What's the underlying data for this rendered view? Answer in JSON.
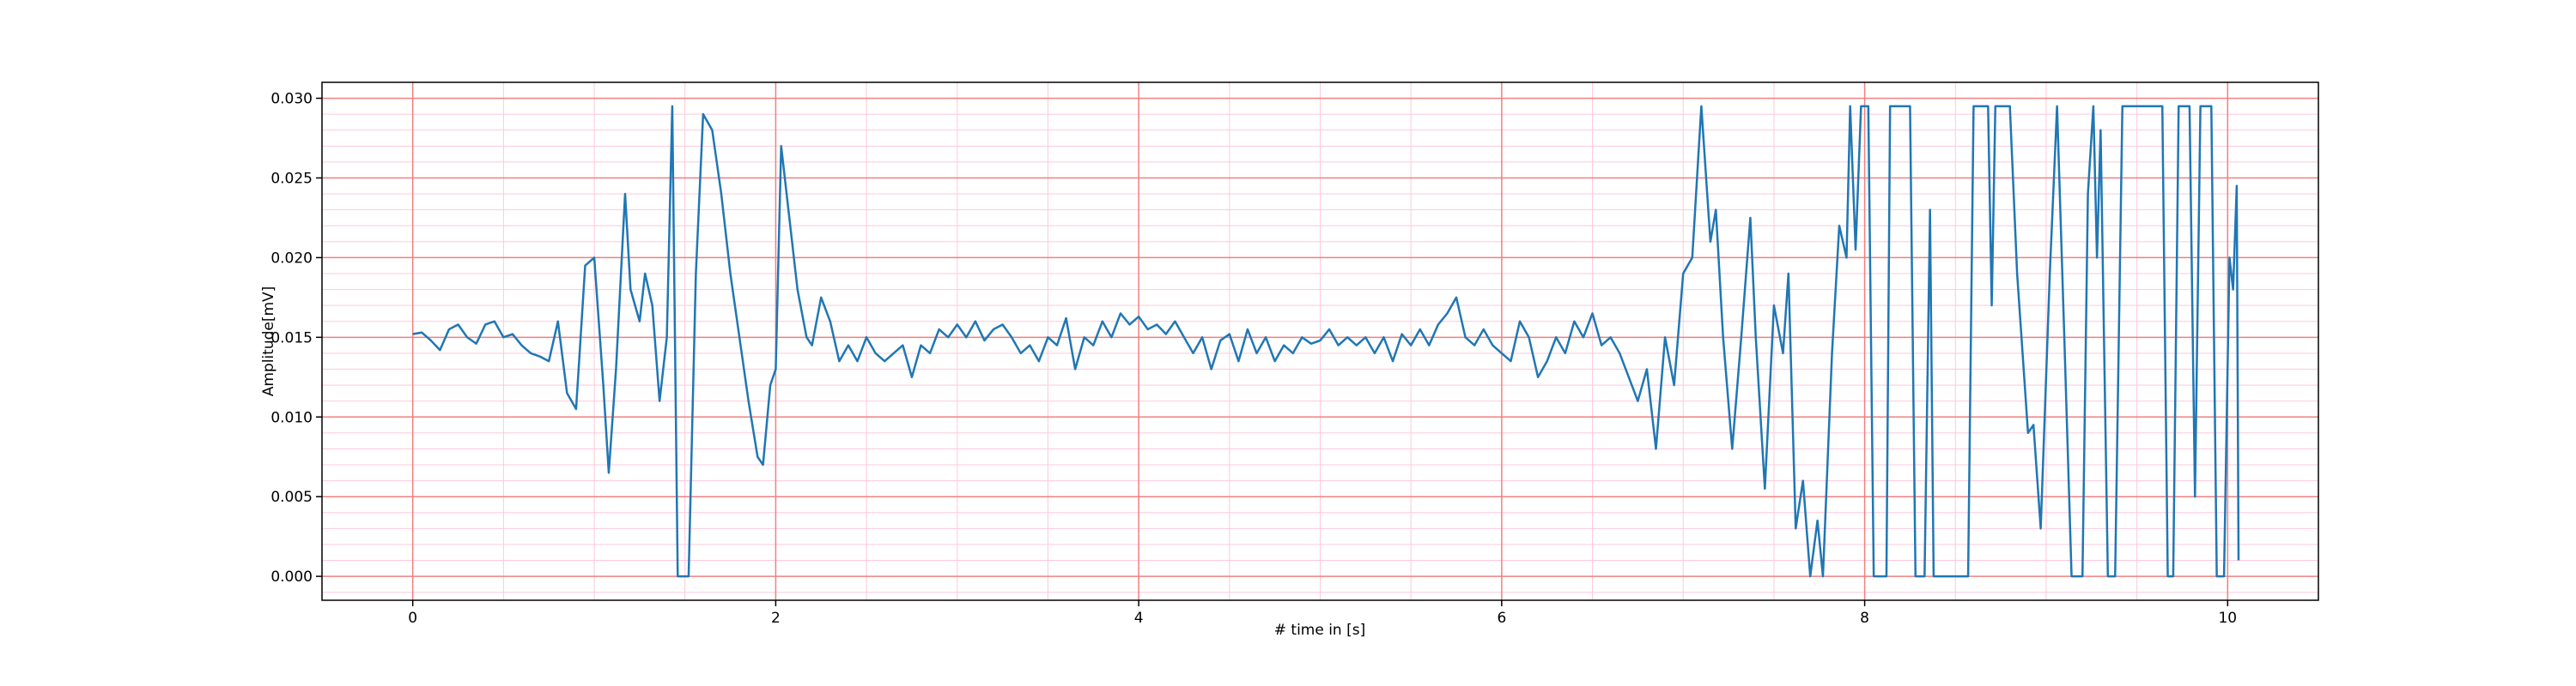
{
  "chart_data": {
    "type": "line",
    "xlabel": "# time in [s]",
    "ylabel": "Amplitude[mV]",
    "color": "#1f77b4",
    "grid": true,
    "xlim": [
      -0.5,
      10.5
    ],
    "ylim": [
      -0.0015,
      0.031
    ],
    "xticks": [
      0,
      2,
      4,
      6,
      8,
      10
    ],
    "yticks": [
      {
        "value": 0,
        "label": "0.000"
      },
      {
        "value": 0.005,
        "label": "0.005"
      },
      {
        "value": 0.01,
        "label": "0.010"
      },
      {
        "value": 0.015,
        "label": "0.015"
      },
      {
        "value": 0.02,
        "label": "0.020"
      },
      {
        "value": 0.025,
        "label": "0.025"
      },
      {
        "value": 0.03,
        "label": "0.030"
      }
    ],
    "xminorticks": [
      -0.5,
      0.5,
      1,
      1.5,
      2.5,
      3,
      3.5,
      4.5,
      5,
      5.5,
      6.5,
      7,
      7.5,
      8.5,
      9,
      9.5,
      10.5
    ],
    "yminorticks": [
      -0.001,
      0.001,
      0.002,
      0.003,
      0.004,
      0.006,
      0.007,
      0.008,
      0.009,
      0.011,
      0.012,
      0.013,
      0.014,
      0.016,
      0.017,
      0.018,
      0.019,
      0.021,
      0.022,
      0.023,
      0.024,
      0.026,
      0.027,
      0.028,
      0.029
    ],
    "x": [
      0,
      0.05,
      0.1,
      0.15,
      0.2,
      0.25,
      0.3,
      0.35,
      0.4,
      0.45,
      0.5,
      0.55,
      0.6,
      0.65,
      0.7,
      0.75,
      0.8,
      0.85,
      0.9,
      0.95,
      1.0,
      1.05,
      1.08,
      1.12,
      1.17,
      1.2,
      1.25,
      1.28,
      1.32,
      1.36,
      1.4,
      1.43,
      1.46,
      1.52,
      1.56,
      1.6,
      1.65,
      1.7,
      1.75,
      1.8,
      1.85,
      1.9,
      1.93,
      1.97,
      2.0,
      2.03,
      2.08,
      2.12,
      2.17,
      2.2,
      2.25,
      2.3,
      2.35,
      2.4,
      2.45,
      2.5,
      2.55,
      2.6,
      2.65,
      2.7,
      2.75,
      2.8,
      2.85,
      2.9,
      2.95,
      3.0,
      3.05,
      3.1,
      3.15,
      3.2,
      3.25,
      3.3,
      3.35,
      3.4,
      3.45,
      3.5,
      3.55,
      3.6,
      3.65,
      3.7,
      3.75,
      3.8,
      3.85,
      3.9,
      3.95,
      4.0,
      4.05,
      4.1,
      4.15,
      4.2,
      4.25,
      4.3,
      4.35,
      4.4,
      4.45,
      4.5,
      4.55,
      4.6,
      4.65,
      4.7,
      4.75,
      4.8,
      4.85,
      4.9,
      4.95,
      5.0,
      5.05,
      5.1,
      5.15,
      5.2,
      5.25,
      5.3,
      5.35,
      5.4,
      5.45,
      5.5,
      5.55,
      5.6,
      5.65,
      5.7,
      5.75,
      5.8,
      5.85,
      5.9,
      5.95,
      6.0,
      6.05,
      6.1,
      6.15,
      6.2,
      6.25,
      6.3,
      6.35,
      6.4,
      6.45,
      6.5,
      6.55,
      6.6,
      6.65,
      6.7,
      6.75,
      6.8,
      6.85,
      6.9,
      6.95,
      7.0,
      7.05,
      7.1,
      7.15,
      7.18,
      7.22,
      7.27,
      7.32,
      7.37,
      7.4,
      7.45,
      7.5,
      7.55,
      7.58,
      7.62,
      7.66,
      7.7,
      7.74,
      7.77,
      7.82,
      7.86,
      7.9,
      7.92,
      7.95,
      7.98,
      8.02,
      8.05,
      8.12,
      8.14,
      8.25,
      8.28,
      8.33,
      8.36,
      8.38,
      8.57,
      8.6,
      8.68,
      8.7,
      8.72,
      8.8,
      8.84,
      8.9,
      8.93,
      8.97,
      9.02,
      9.06,
      9.1,
      9.14,
      9.2,
      9.23,
      9.26,
      9.28,
      9.3,
      9.34,
      9.38,
      9.42,
      9.64,
      9.67,
      9.7,
      9.73,
      9.79,
      9.82,
      9.85,
      9.91,
      9.94,
      9.98,
      10.01,
      10.03,
      10.05,
      10.06
    ],
    "values": [
      0.0152,
      0.0153,
      0.0148,
      0.0142,
      0.0155,
      0.0158,
      0.015,
      0.0146,
      0.0158,
      0.016,
      0.015,
      0.0152,
      0.0145,
      0.014,
      0.0138,
      0.0135,
      0.016,
      0.0115,
      0.0105,
      0.0195,
      0.02,
      0.012,
      0.0065,
      0.013,
      0.024,
      0.018,
      0.016,
      0.019,
      0.017,
      0.011,
      0.015,
      0.0295,
      0,
      0,
      0.019,
      0.029,
      0.028,
      0.024,
      0.019,
      0.015,
      0.011,
      0.0075,
      0.007,
      0.012,
      0.013,
      0.027,
      0.022,
      0.018,
      0.015,
      0.0145,
      0.0175,
      0.016,
      0.0135,
      0.0145,
      0.0135,
      0.015,
      0.014,
      0.0135,
      0.014,
      0.0145,
      0.0125,
      0.0145,
      0.014,
      0.0155,
      0.015,
      0.0158,
      0.015,
      0.016,
      0.0148,
      0.0155,
      0.0158,
      0.015,
      0.014,
      0.0145,
      0.0135,
      0.015,
      0.0145,
      0.0162,
      0.013,
      0.015,
      0.0145,
      0.016,
      0.015,
      0.0165,
      0.0158,
      0.0163,
      0.0155,
      0.0158,
      0.0152,
      0.016,
      0.015,
      0.014,
      0.015,
      0.013,
      0.0148,
      0.0152,
      0.0135,
      0.0155,
      0.014,
      0.015,
      0.0135,
      0.0145,
      0.014,
      0.015,
      0.0146,
      0.0148,
      0.0155,
      0.0145,
      0.015,
      0.0145,
      0.015,
      0.014,
      0.015,
      0.0135,
      0.0152,
      0.0145,
      0.0155,
      0.0145,
      0.0158,
      0.0165,
      0.0175,
      0.015,
      0.0145,
      0.0155,
      0.0145,
      0.014,
      0.0135,
      0.016,
      0.015,
      0.0125,
      0.0135,
      0.015,
      0.014,
      0.016,
      0.015,
      0.0165,
      0.0145,
      0.015,
      0.014,
      0.0125,
      0.011,
      0.013,
      0.008,
      0.015,
      0.012,
      0.019,
      0.02,
      0.0295,
      0.021,
      0.023,
      0.015,
      0.008,
      0.015,
      0.0225,
      0.015,
      0.0055,
      0.017,
      0.014,
      0.019,
      0.003,
      0.006,
      0,
      0.0035,
      0,
      0.014,
      0.022,
      0.02,
      0.0295,
      0.0205,
      0.0295,
      0.0295,
      0,
      0,
      0.0295,
      0.0295,
      0,
      0,
      0.023,
      0,
      0,
      0.0295,
      0.0295,
      0.017,
      0.0295,
      0.0295,
      0.019,
      0.009,
      0.0095,
      0.003,
      0.019,
      0.0295,
      0.015,
      0,
      0,
      0.024,
      0.0295,
      0.02,
      0.028,
      0,
      0,
      0.0295,
      0.0295,
      0,
      0,
      0.0295,
      0.0295,
      0.005,
      0.0295,
      0.0295,
      0,
      0,
      0.02,
      0.018,
      0.0245,
      0.001
    ]
  }
}
